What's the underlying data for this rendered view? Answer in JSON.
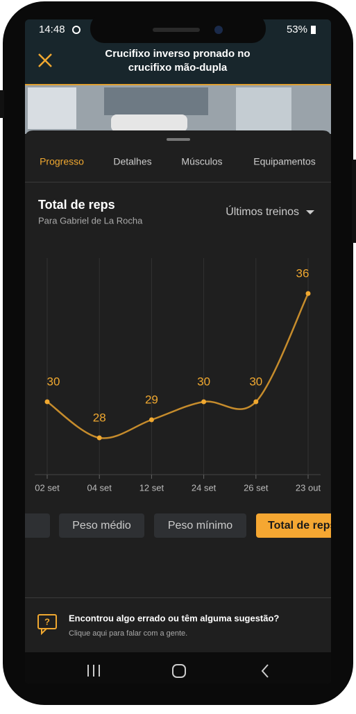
{
  "status": {
    "time": "14:48",
    "battery": "53%"
  },
  "header": {
    "title_lines": [
      "Crucifixo inverso pronado no",
      "crucifixo mão-dupla"
    ]
  },
  "tabs": [
    "Progresso",
    "Detalhes",
    "Músculos",
    "Equipamentos"
  ],
  "dropdown": "Últimos treinos",
  "chart_data": {
    "type": "line",
    "title": "Total de reps",
    "subtitle": "Para Gabriel de La Rocha",
    "categories": [
      "02 set",
      "04 set",
      "12 set",
      "24 set",
      "26 set",
      "23 out"
    ],
    "values": [
      30,
      28,
      29,
      30,
      30,
      36
    ],
    "color": "#f0a830",
    "grid": true
  },
  "chips": [
    "Peso médio",
    "Peso mínimo",
    "Total de reps"
  ],
  "feedback": {
    "title": "Encontrou algo errado ou têm alguma sugestão?",
    "subtitle": "Clique aqui para falar com a gente."
  }
}
